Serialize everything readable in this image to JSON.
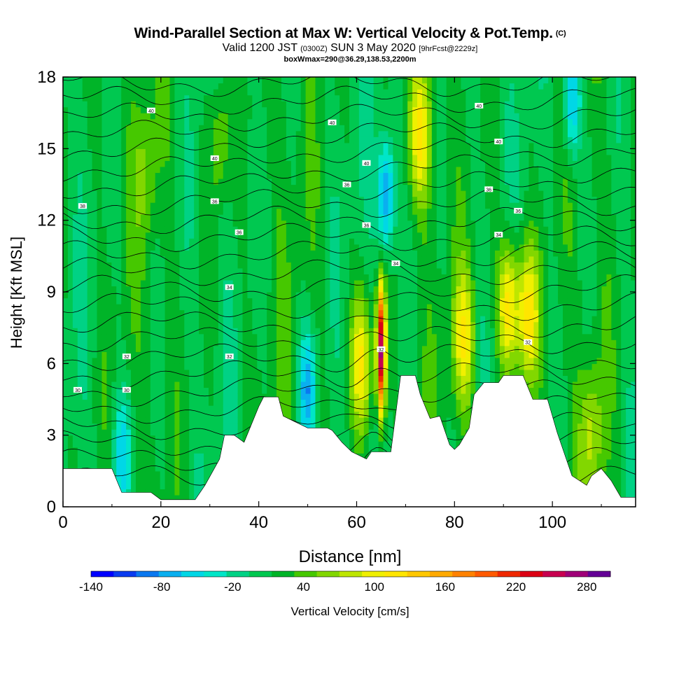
{
  "header": {
    "title": "Wind-Parallel Section at Max W: Vertical Velocity & Pot.Temp.",
    "title_mark": "(C)",
    "valid_prefix": "Valid 1200 JST",
    "valid_zulu": "(0300Z)",
    "valid_date": "SUN 3 May 2020",
    "forecast": "[9hrFcst@2229z]",
    "box_info": "boxWmax=290@36.29,138.53,2200m"
  },
  "chart_data": {
    "type": "heatmap",
    "title": "Wind-Parallel Section at Max W: Vertical Velocity & Pot.Temp.",
    "xlabel": "Distance [nm]",
    "ylabel": "Height [Kft MSL]",
    "xlim": [
      0,
      117
    ],
    "ylim": [
      0,
      18
    ],
    "x_ticks": [
      "0",
      "20",
      "40",
      "60",
      "80",
      "100"
    ],
    "y_ticks": [
      "0",
      "3",
      "6",
      "9",
      "12",
      "15",
      "18"
    ],
    "colorbar": {
      "label": "Vertical Velocity [cm/s]",
      "range": [
        -140,
        300
      ],
      "step": 20,
      "tick_labels": [
        "-140",
        "-80",
        "-20",
        "40",
        "100",
        "160",
        "220",
        "280"
      ],
      "colors": [
        "#0000ff",
        "#0a3cf0",
        "#0a78f0",
        "#0aaff0",
        "#00d7e6",
        "#00e6c8",
        "#00d285",
        "#00c850",
        "#00b428",
        "#46c800",
        "#82d700",
        "#bee600",
        "#f0f000",
        "#ffe600",
        "#ffc800",
        "#ffaa00",
        "#ff8200",
        "#ff5a00",
        "#f02800",
        "#dc0014",
        "#c80050",
        "#a00078",
        "#640096"
      ]
    },
    "terrain_kft": [
      [
        0,
        1.6
      ],
      [
        10,
        1.6
      ],
      [
        11,
        1.1
      ],
      [
        12,
        0.6
      ],
      [
        18,
        0.6
      ],
      [
        20,
        0.3
      ],
      [
        27,
        0.3
      ],
      [
        29,
        0.9
      ],
      [
        32,
        2.0
      ],
      [
        33,
        3.0
      ],
      [
        35,
        3.0
      ],
      [
        37,
        2.7
      ],
      [
        40,
        4.2
      ],
      [
        41,
        4.6
      ],
      [
        44,
        4.6
      ],
      [
        45,
        3.8
      ],
      [
        47,
        3.6
      ],
      [
        50,
        3.3
      ],
      [
        54,
        3.3
      ],
      [
        55,
        3.2
      ],
      [
        57,
        2.7
      ],
      [
        59,
        2.3
      ],
      [
        62,
        2.0
      ],
      [
        63,
        2.3
      ],
      [
        67,
        2.3
      ],
      [
        69,
        5.5
      ],
      [
        72,
        5.5
      ],
      [
        73,
        4.7
      ],
      [
        75,
        3.7
      ],
      [
        77,
        3.8
      ],
      [
        79,
        2.6
      ],
      [
        80,
        2.4
      ],
      [
        81,
        2.6
      ],
      [
        83,
        3.3
      ],
      [
        84,
        4.7
      ],
      [
        86,
        5.2
      ],
      [
        89,
        5.2
      ],
      [
        90,
        5.5
      ],
      [
        94,
        5.5
      ],
      [
        96,
        4.5
      ],
      [
        99,
        4.5
      ],
      [
        101,
        3.1
      ],
      [
        103,
        1.9
      ],
      [
        104,
        1.3
      ],
      [
        107,
        0.9
      ],
      [
        108,
        1.3
      ],
      [
        110,
        1.6
      ],
      [
        112,
        1.1
      ],
      [
        114,
        0.4
      ],
      [
        117,
        0.4
      ]
    ],
    "updraft_cores": [
      {
        "x": 65,
        "y": 6.5,
        "w": 290
      },
      {
        "x": 61,
        "y": 6.0,
        "w": 120
      },
      {
        "x": 73,
        "y": 15.5,
        "w": 110
      },
      {
        "x": 82,
        "y": 7.0,
        "w": 110
      },
      {
        "x": 91,
        "y": 8.5,
        "w": 140
      },
      {
        "x": 95,
        "y": 8.0,
        "w": 130
      },
      {
        "x": 108,
        "y": 3.0,
        "w": 80
      },
      {
        "x": 32,
        "y": 15.5,
        "w": 70
      },
      {
        "x": 17,
        "y": 14.0,
        "w": 55
      }
    ],
    "downdraft_cores": [
      {
        "x": 12,
        "y": 2.2,
        "w": -50
      },
      {
        "x": 50,
        "y": 5.0,
        "w": -70
      },
      {
        "x": 66,
        "y": 13.0,
        "w": -90
      },
      {
        "x": 104,
        "y": 17.0,
        "w": -80
      }
    ],
    "contour_labels": [
      {
        "x": 18,
        "y": 16.6,
        "text": "40"
      },
      {
        "x": 55,
        "y": 16.1,
        "text": "40"
      },
      {
        "x": 85,
        "y": 16.8,
        "text": "40"
      },
      {
        "x": 89,
        "y": 15.3,
        "text": "40"
      },
      {
        "x": 31,
        "y": 14.6,
        "text": "40"
      },
      {
        "x": 62,
        "y": 14.4,
        "text": "40"
      },
      {
        "x": 58,
        "y": 13.5,
        "text": "36"
      },
      {
        "x": 87,
        "y": 13.3,
        "text": "36"
      },
      {
        "x": 4,
        "y": 12.6,
        "text": "38"
      },
      {
        "x": 31,
        "y": 12.8,
        "text": "36"
      },
      {
        "x": 93,
        "y": 12.4,
        "text": "36"
      },
      {
        "x": 62,
        "y": 11.8,
        "text": "36"
      },
      {
        "x": 36,
        "y": 11.5,
        "text": "36"
      },
      {
        "x": 89,
        "y": 11.4,
        "text": "34"
      },
      {
        "x": 68,
        "y": 10.2,
        "text": "34"
      },
      {
        "x": 34,
        "y": 9.2,
        "text": "34"
      },
      {
        "x": 13,
        "y": 6.3,
        "text": "32"
      },
      {
        "x": 34,
        "y": 6.3,
        "text": "32"
      },
      {
        "x": 65,
        "y": 6.6,
        "text": "32"
      },
      {
        "x": 95,
        "y": 6.9,
        "text": "32"
      },
      {
        "x": 3,
        "y": 4.9,
        "text": "30"
      },
      {
        "x": 13,
        "y": 4.9,
        "text": "30"
      }
    ]
  }
}
